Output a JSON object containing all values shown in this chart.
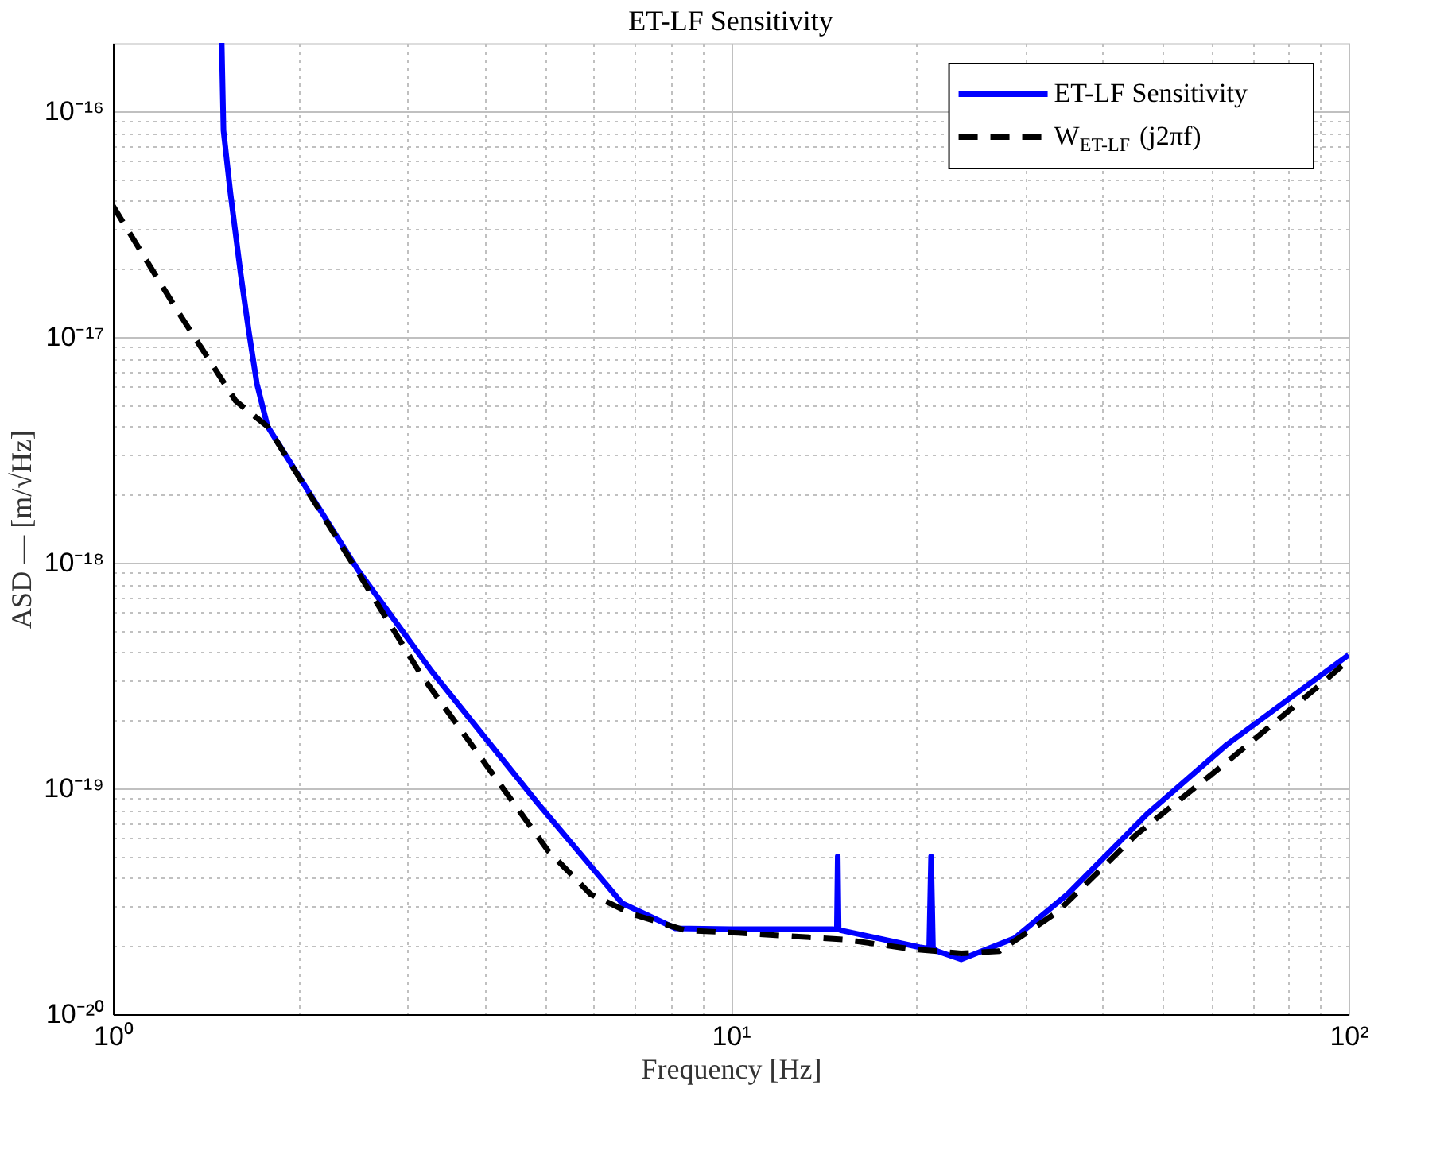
{
  "chart_data": {
    "type": "line",
    "title": "ET-LF Sensitivity",
    "xlabel": "Frequency [Hz]",
    "ylabel": "ASD — [m/√Hz]",
    "log": "xy",
    "grid": true,
    "legend": "top right",
    "xlim": [
      1,
      100
    ],
    "ylim": [
      1e-20,
      2e-16
    ],
    "xticks": [
      {
        "value": 1,
        "label": "10⁰"
      },
      {
        "value": 2,
        "label": null
      },
      {
        "value": 3,
        "label": null
      },
      {
        "value": 4,
        "label": null
      },
      {
        "value": 5,
        "label": null
      },
      {
        "value": 6,
        "label": null
      },
      {
        "value": 7,
        "label": null
      },
      {
        "value": 8,
        "label": null
      },
      {
        "value": 9,
        "label": null
      },
      {
        "value": 10,
        "label": "10¹"
      },
      {
        "value": 20,
        "label": null
      },
      {
        "value": 30,
        "label": null
      },
      {
        "value": 40,
        "label": null
      },
      {
        "value": 50,
        "label": null
      },
      {
        "value": 60,
        "label": null
      },
      {
        "value": 70,
        "label": null
      },
      {
        "value": 80,
        "label": null
      },
      {
        "value": 90,
        "label": null
      },
      {
        "value": 100,
        "label": "10²"
      }
    ],
    "yticks": [
      {
        "value": 1e-20,
        "label": "10⁻²⁰"
      },
      {
        "value": 2e-20,
        "label": null
      },
      {
        "value": 3e-20,
        "label": null
      },
      {
        "value": 4e-20,
        "label": null
      },
      {
        "value": 5e-20,
        "label": null
      },
      {
        "value": 6e-20,
        "label": null
      },
      {
        "value": 7e-20,
        "label": null
      },
      {
        "value": 8e-20,
        "label": null
      },
      {
        "value": 9e-20,
        "label": null
      },
      {
        "value": 1e-19,
        "label": "10⁻¹⁹"
      },
      {
        "value": 2e-19,
        "label": null
      },
      {
        "value": 3e-19,
        "label": null
      },
      {
        "value": 4e-19,
        "label": null
      },
      {
        "value": 5e-19,
        "label": null
      },
      {
        "value": 6e-19,
        "label": null
      },
      {
        "value": 7e-19,
        "label": null
      },
      {
        "value": 8e-19,
        "label": null
      },
      {
        "value": 9e-19,
        "label": null
      },
      {
        "value": 1e-18,
        "label": "10⁻¹⁸"
      },
      {
        "value": 2e-18,
        "label": null
      },
      {
        "value": 3e-18,
        "label": null
      },
      {
        "value": 4e-18,
        "label": null
      },
      {
        "value": 5e-18,
        "label": null
      },
      {
        "value": 6e-18,
        "label": null
      },
      {
        "value": 7e-18,
        "label": null
      },
      {
        "value": 8e-18,
        "label": null
      },
      {
        "value": 9e-18,
        "label": null
      },
      {
        "value": 1e-17,
        "label": "10⁻¹⁷"
      },
      {
        "value": 2e-17,
        "label": null
      },
      {
        "value": 3e-17,
        "label": null
      },
      {
        "value": 4e-17,
        "label": null
      },
      {
        "value": 5e-17,
        "label": null
      },
      {
        "value": 6e-17,
        "label": null
      },
      {
        "value": 7e-17,
        "label": null
      },
      {
        "value": 8e-17,
        "label": null
      },
      {
        "value": 9e-17,
        "label": null
      },
      {
        "value": 1e-16,
        "label": "10⁻¹⁶"
      }
    ],
    "series": [
      {
        "name": "ET-LF Sensitivity",
        "color": "#0000ff",
        "line_style": "solid",
        "x": [
          1.5,
          1.51,
          1.55,
          1.61,
          1.66,
          1.71,
          1.78,
          2.49,
          3.28,
          4.87,
          6.67,
          8.14,
          10.0,
          14.6,
          14.85,
          14.9,
          14.95,
          15.1,
          20.2,
          20.95,
          21.1,
          21.25,
          21.6,
          23.6,
          28.8,
          35.1,
          47.2,
          63.5,
          100
        ],
        "values": [
          2e-16,
          8.2e-17,
          4.3e-17,
          1.9e-17,
          1.05e-17,
          6.2e-18,
          4e-18,
          9.3e-19,
          3.3e-19,
          8.6e-20,
          3.1e-20,
          2.4e-20,
          2.38e-20,
          2.38e-20,
          2.37e-20,
          5e-20,
          2.37e-20,
          2.35e-20,
          1.98e-20,
          1.95e-20,
          5e-20,
          1.95e-20,
          1.9e-20,
          1.75e-20,
          2.17e-20,
          3.4e-20,
          7.7e-20,
          1.56e-19,
          3.9e-19
        ]
      },
      {
        "name": "W$_{ET-LF}$(j2πf)",
        "color": "#000000",
        "line_style": "dashed",
        "x": [
          1,
          1.27,
          1.58,
          1.78,
          2.49,
          3.15,
          5.06,
          5.93,
          6.94,
          8.45,
          10.3,
          15.3,
          19.4,
          23.6,
          27.2,
          28.8,
          33.8,
          45.2,
          62.5,
          88.9,
          100
        ],
        "values": [
          3.8e-17,
          1.31e-17,
          5.2e-18,
          4e-18,
          9.1e-19,
          3.2e-19,
          5.3e-20,
          3.4e-20,
          2.77e-20,
          2.35e-20,
          2.29e-20,
          2.14e-20,
          1.95e-20,
          1.86e-20,
          1.9e-20,
          2.11e-20,
          2.84e-20,
          6.2e-20,
          1.26e-19,
          2.8e-19,
          3.7e-19
        ]
      }
    ]
  }
}
